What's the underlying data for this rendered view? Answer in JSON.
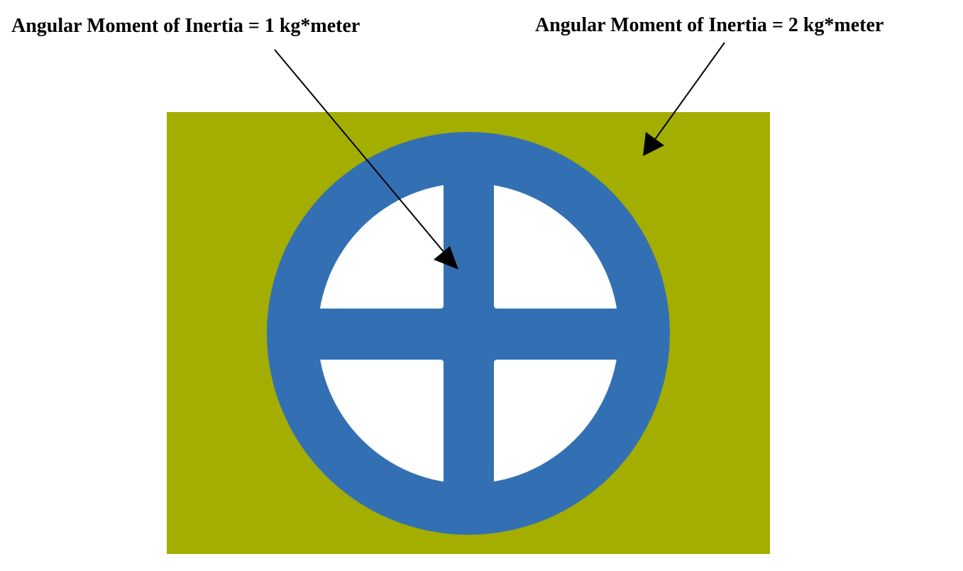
{
  "labels": {
    "inner": "Angular Moment of Inertia = 1 kg*meter",
    "outer": "Angular Moment of Inertia = 2 kg*meter"
  },
  "colors": {
    "background": "#ffffff",
    "plate": "#a3ae00",
    "wheel": "#3370b3",
    "hole": "#ffffff",
    "arrow": "#000000"
  }
}
